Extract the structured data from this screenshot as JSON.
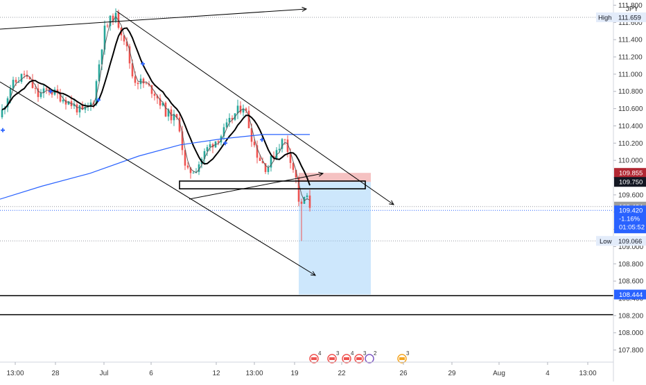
{
  "chart_data": {
    "type": "candlestick",
    "symbol_unit": "JPY",
    "y_axis": {
      "ticks": [
        111.8,
        111.6,
        111.4,
        111.2,
        111.0,
        110.8,
        110.6,
        110.4,
        110.2,
        110.0,
        109.8,
        109.6,
        109.4,
        109.2,
        109.0,
        108.8,
        108.6,
        108.4,
        108.2,
        108.0,
        107.8
      ],
      "tick_labels": [
        "111.800",
        "111.600",
        "111.400",
        "111.200",
        "111.000",
        "110.800",
        "110.600",
        "110.400",
        "110.200",
        "110.000",
        "109.800",
        "109.600",
        "109.400",
        "109.200",
        "109.000",
        "108.800",
        "108.600",
        "108.400",
        "108.200",
        "108.000",
        "107.800"
      ],
      "range": [
        107.66,
        111.86
      ]
    },
    "x_axis": {
      "labels": [
        "13:00",
        "28",
        "Jul",
        "6",
        "12",
        "13:00",
        "19",
        "22",
        "26",
        "29",
        "Aug",
        "4",
        "13:00"
      ]
    },
    "high": {
      "label": "High",
      "value": "111.659",
      "price": 111.659
    },
    "low": {
      "label": "Low",
      "value": "109.066",
      "price": 109.066
    },
    "price_badges": [
      {
        "value": "109.855",
        "price": 109.855,
        "color": "#b22833"
      },
      {
        "value": "109.750",
        "price": 109.75,
        "color": "#131722"
      },
      {
        "value": "109.464",
        "price": 109.464,
        "color": "#9e9e9e"
      },
      {
        "value": "108.444",
        "price": 108.444,
        "color": "#2962ff"
      }
    ],
    "current": {
      "price_text": "109.420",
      "price": 109.42,
      "change_text": "-1.16%",
      "countdown_text": "01:05:52",
      "color": "#2962ff"
    },
    "horizontal_levels": [
      108.43,
      108.21
    ],
    "trade_box": {
      "entry": 109.75,
      "stop": 109.855,
      "target": 108.444
    },
    "events": [
      {
        "text": "4"
      },
      {
        "text": "3"
      },
      {
        "text": "4"
      },
      {
        "text": "3"
      },
      {
        "text": "3"
      },
      {
        "text": "2"
      }
    ],
    "colors": {
      "up": "#26a69a",
      "down": "#ef5350",
      "ma_fast": "#555555",
      "ma_slow": "#000000",
      "ma_long": "#2962ff",
      "stop_zone": "#ef9a9a",
      "target_zone": "#90caf9"
    }
  }
}
